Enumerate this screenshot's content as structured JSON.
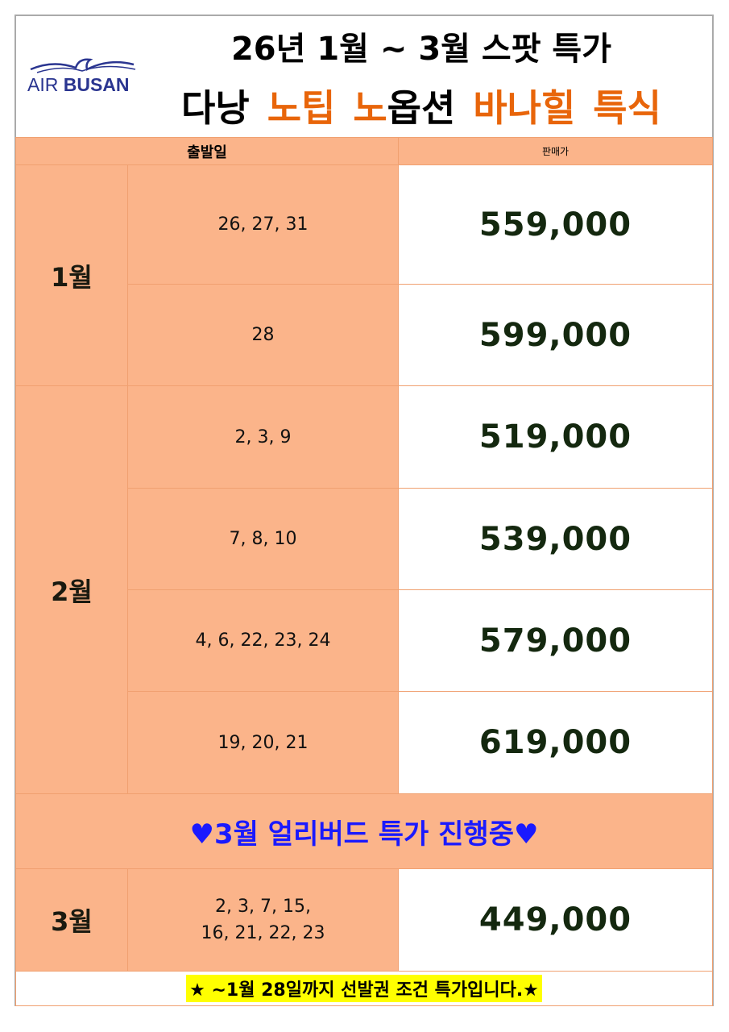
{
  "header": {
    "logo_text_light": "AIR",
    "logo_text_bold": "BUSAN",
    "title_line1": "26년 1월 ~ 3월 스팟 특가",
    "title_line2": [
      {
        "text": "다낭",
        "color": "#000000"
      },
      {
        "text": "노팁",
        "color": "#e8650a"
      },
      {
        "text": "노",
        "color": "#e8650a"
      },
      {
        "text": "옵션",
        "color": "#000000"
      },
      {
        "text": "바나힐 특식",
        "color": "#e8650a"
      }
    ]
  },
  "table": {
    "col_departure": "출발일",
    "col_price": "판매가",
    "groups": [
      {
        "month": "1월",
        "rows": [
          {
            "dates": "26, 27, 31",
            "price": "559,000"
          },
          {
            "dates": "28",
            "price": "599,000"
          }
        ]
      },
      {
        "month": "2월",
        "rows": [
          {
            "dates": "2, 3, 9",
            "price": "519,000"
          },
          {
            "dates": "7, 8, 10",
            "price": "539,000"
          },
          {
            "dates": "4, 6, 22, 23, 24",
            "price": "579,000"
          },
          {
            "dates": "19, 20, 21",
            "price": "619,000"
          }
        ]
      },
      {
        "month": "3월",
        "rows": [
          {
            "dates": "2, 3, 7, 15,\n16, 21, 22, 23",
            "price": "449,000"
          }
        ]
      }
    ],
    "banner": "♥3월 얼리버드 특가 진행중♥"
  },
  "footer": {
    "note": "★ ~1월 28일까지 선발권 조건 특가입니다.★"
  },
  "colors": {
    "peach": "#fbb48a",
    "accent_orange": "#e8650a",
    "brand_navy": "#2a3590",
    "banner_blue": "#1a1aff",
    "highlight_yellow": "#ffff00"
  }
}
